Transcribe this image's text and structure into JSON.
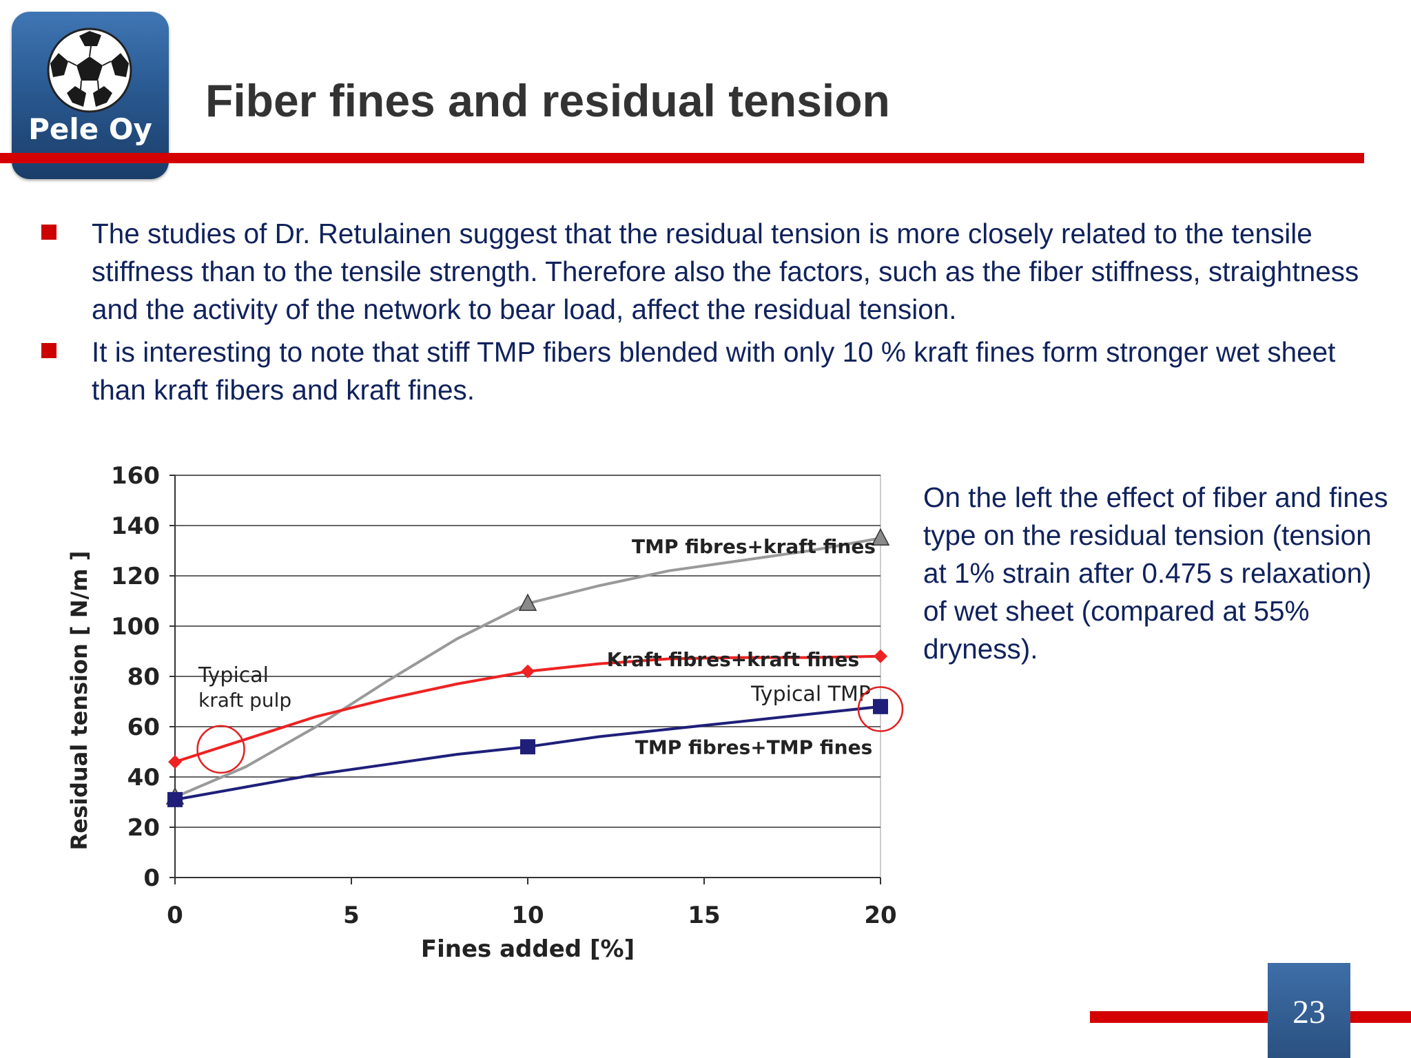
{
  "logo": {
    "text": "Pele Oy",
    "icon": "soccer-ball-icon"
  },
  "title": "Fiber fines and residual tension",
  "bullets": [
    {
      "text": "The studies of Dr. Retulainen suggest that the residual tension is more closely related to the tensile stiffness than to the tensile strength. Therefore also the factors, such as the fiber stiffness, straightness and the activity of the network to bear load, affect the residual tension."
    },
    {
      "text": "It is interesting to note that stiff TMP fibers blended with only 10 % kraft fines form stronger wet sheet than kraft fibers and kraft fines."
    }
  ],
  "caption": "On the left the effect of fiber and fines type on the residual tension (tension at 1% strain after 0.475 s relaxation) of wet sheet (compared at 55% dryness).",
  "page_number": "23",
  "colors": {
    "accent_red": "#d40000",
    "text_navy": "#10225c",
    "title_gray": "#333333"
  },
  "chart_data": {
    "type": "line",
    "xlabel": "Fines added [%]",
    "ylabel": "Residual tension [ N/m ]",
    "xlim": [
      0,
      20
    ],
    "ylim": [
      0,
      160
    ],
    "xticks": [
      0,
      5,
      10,
      15,
      20
    ],
    "yticks": [
      0,
      20,
      40,
      60,
      80,
      100,
      120,
      140,
      160
    ],
    "grid": "horizontal",
    "series": [
      {
        "name": "TMP fibres+kraft fines",
        "color": "#999999",
        "marker": "triangle",
        "x": [
          0,
          10,
          20
        ],
        "y": [
          32,
          109,
          135
        ],
        "curve": [
          [
            0,
            32
          ],
          [
            2,
            44
          ],
          [
            4,
            60
          ],
          [
            6,
            78
          ],
          [
            8,
            95
          ],
          [
            10,
            109
          ],
          [
            12,
            116
          ],
          [
            14,
            122
          ],
          [
            16,
            126
          ],
          [
            18,
            130
          ],
          [
            20,
            135
          ]
        ]
      },
      {
        "name": "Kraft fibres+kraft fines",
        "color": "#ee2222",
        "marker": "diamond",
        "x": [
          0,
          10,
          20
        ],
        "y": [
          46,
          82,
          88
        ],
        "curve": [
          [
            0,
            46
          ],
          [
            2,
            55
          ],
          [
            4,
            64
          ],
          [
            6,
            71
          ],
          [
            8,
            77
          ],
          [
            10,
            82
          ],
          [
            12,
            85
          ],
          [
            14,
            87
          ],
          [
            16,
            87.5
          ],
          [
            18,
            87.5
          ],
          [
            20,
            88
          ]
        ]
      },
      {
        "name": "TMP fibres+TMP fines",
        "color": "#1f1f7a",
        "marker": "square",
        "x": [
          0,
          10,
          20
        ],
        "y": [
          31,
          52,
          68
        ],
        "curve": [
          [
            0,
            31
          ],
          [
            2,
            36
          ],
          [
            4,
            41
          ],
          [
            6,
            45
          ],
          [
            8,
            49
          ],
          [
            10,
            52
          ],
          [
            12,
            56
          ],
          [
            14,
            59
          ],
          [
            16,
            62
          ],
          [
            18,
            65
          ],
          [
            20,
            68
          ]
        ]
      }
    ],
    "annotations": [
      {
        "text": [
          "Typical",
          "kraft pulp"
        ],
        "circle_at": [
          1.3,
          51
        ]
      },
      {
        "text": [
          "Typical TMP"
        ],
        "circle_at": [
          20,
          67
        ]
      }
    ]
  }
}
